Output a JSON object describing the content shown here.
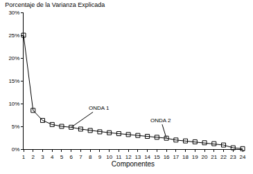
{
  "chart_data": {
    "type": "line",
    "title": "Porcentaje de la Varianza Explicada",
    "x_label": "Componentes",
    "x": [
      1,
      2,
      3,
      4,
      5,
      6,
      7,
      8,
      9,
      10,
      11,
      12,
      13,
      14,
      15,
      16,
      17,
      18,
      19,
      20,
      21,
      22,
      23,
      24
    ],
    "values": [
      25,
      8.5,
      6.3,
      5.4,
      5.0,
      4.8,
      4.4,
      4.1,
      3.8,
      3.6,
      3.4,
      3.2,
      3.0,
      2.8,
      2.6,
      2.4,
      2.0,
      1.8,
      1.6,
      1.4,
      1.2,
      0.9,
      0.3,
      0.1
    ],
    "color": "#000000",
    "marker": "square-open",
    "line_style": "solid",
    "xlim": [
      1,
      24
    ],
    "xticks": [
      1,
      2,
      3,
      4,
      5,
      6,
      7,
      8,
      9,
      10,
      11,
      12,
      13,
      14,
      15,
      16,
      17,
      18,
      19,
      20,
      21,
      22,
      23,
      24
    ],
    "ylim": [
      0,
      30
    ],
    "yticks": [
      {
        "value": 0,
        "label": "0%"
      },
      {
        "value": 5,
        "label": "5%"
      },
      {
        "value": 10,
        "label": "10%"
      },
      {
        "value": 15,
        "label": "15%"
      },
      {
        "value": 20,
        "label": "20%"
      },
      {
        "value": 25,
        "label": "25%"
      },
      {
        "value": 30,
        "label": "30%"
      }
    ],
    "grid": false,
    "annotations": [
      {
        "text": "ONDA 1",
        "x": 6,
        "y": 4.8
      },
      {
        "text": "ONDA 2",
        "x": 16,
        "y": 2.4
      }
    ]
  }
}
